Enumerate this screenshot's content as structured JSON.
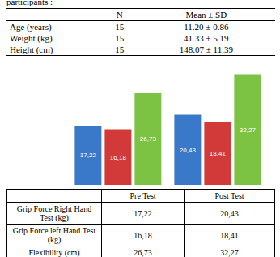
{
  "caption": "participants :",
  "participants_table": {
    "columns": [
      "N",
      "Mean ± SD"
    ],
    "rows": [
      {
        "label": "Age (years)",
        "values": [
          "15",
          "11.20 ± 0.86"
        ]
      },
      {
        "label": "Weight (kg)",
        "values": [
          "15",
          "41.33 ± 5.19"
        ]
      },
      {
        "label": "Height (cm)",
        "values": [
          "15",
          "148.07 ± 11.39"
        ]
      }
    ]
  },
  "chart_data": {
    "type": "bar",
    "categories": [
      "Pre Test",
      "Post Test"
    ],
    "series": [
      {
        "name": "Grip Force Right Hand Test (kg)",
        "color": "#3a78c9",
        "values": [
          17.22,
          20.43
        ],
        "value_labels": [
          "17,22",
          "20,43"
        ]
      },
      {
        "name": "Grip Force  left Hand Test (kg)",
        "color": "#d23a3a",
        "values": [
          16.18,
          18.41
        ],
        "value_labels": [
          "16,18",
          "18,41"
        ]
      },
      {
        "name": "Flexibility (cm)",
        "color": "#7cc243",
        "values": [
          26.73,
          32.27
        ],
        "value_labels": [
          "26,73",
          "32,27"
        ]
      }
    ],
    "ylim": [
      0,
      35
    ],
    "data_labels": true,
    "tick_labels": false,
    "grid": false
  }
}
